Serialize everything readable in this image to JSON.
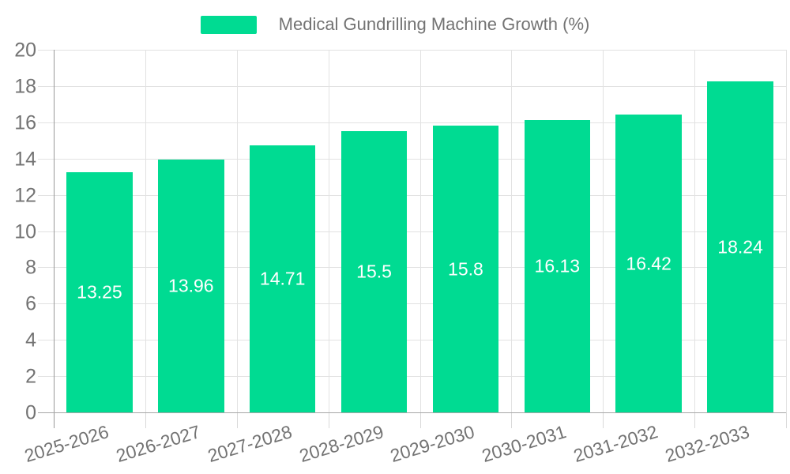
{
  "chart_data": {
    "type": "bar",
    "title": "",
    "legend": "Medical Gundrilling Machine Growth (%)",
    "legend_position": "top",
    "categories": [
      "2025-2026",
      "2026-2027",
      "2027-2028",
      "2028-2029",
      "2029-2030",
      "2030-2031",
      "2031-2032",
      "2032-2033"
    ],
    "values": [
      13.25,
      13.96,
      14.71,
      15.5,
      15.8,
      16.13,
      16.42,
      18.24
    ],
    "value_labels": [
      "13.25",
      "13.96",
      "14.71",
      "15.5",
      "15.8",
      "16.13",
      "16.42",
      "18.24"
    ],
    "xlabel": "",
    "ylabel": "",
    "ylim": [
      0,
      20
    ],
    "ytick_step": 2,
    "grid": true,
    "colors": {
      "bar": "#00db92",
      "grid": "#e2e2e2",
      "axis": "#999999",
      "tick_text": "#737373",
      "value_text": "#ffffff"
    }
  }
}
